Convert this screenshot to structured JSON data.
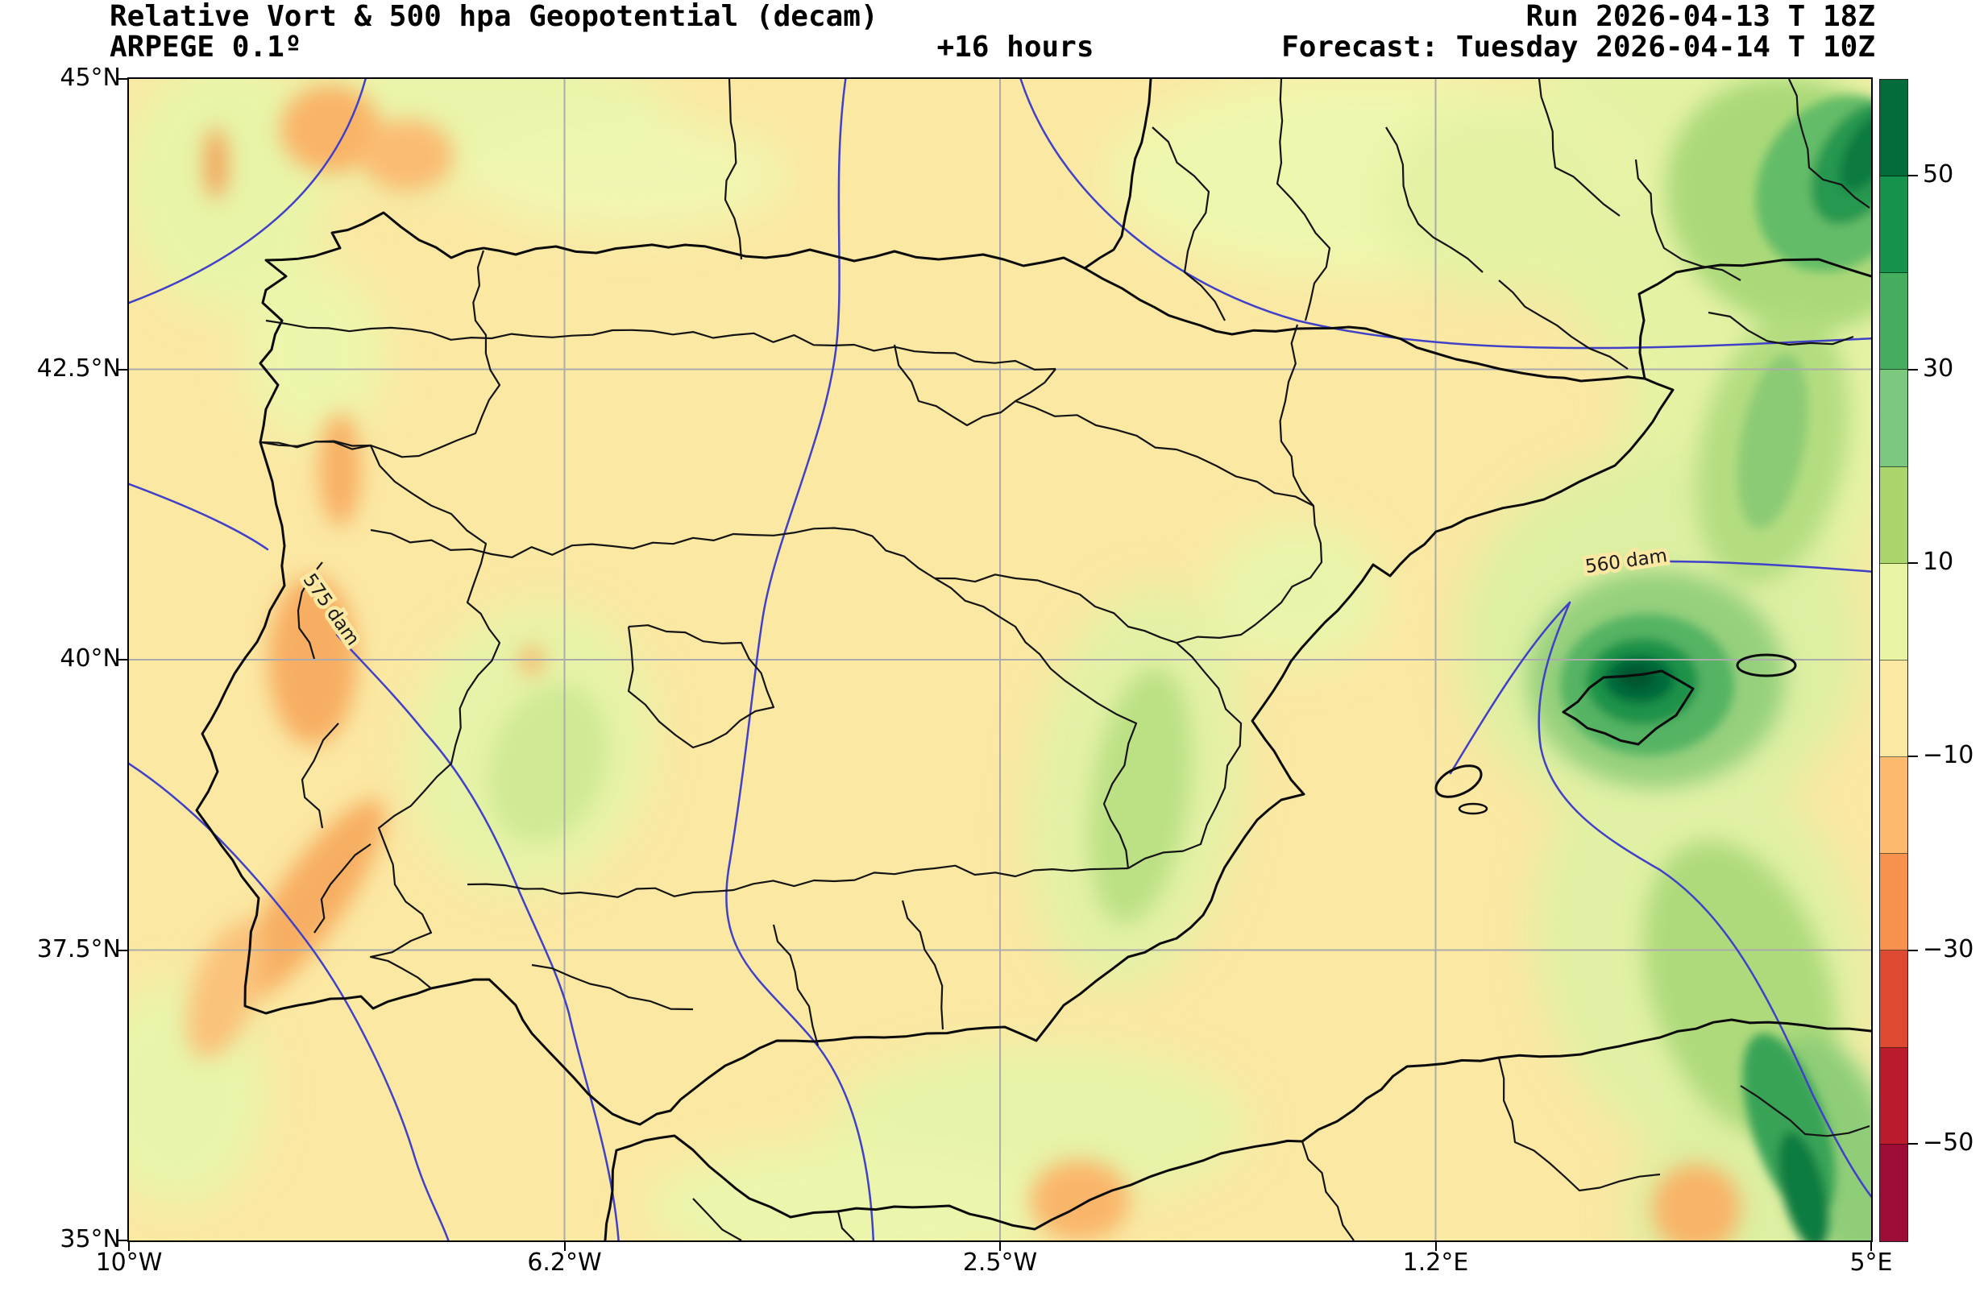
{
  "header": {
    "title_line1": "Relative Vort & 500 hpa Geopotential (decam)",
    "title_line2": "ARPEGE 0.1º",
    "lead_time": "+16 hours",
    "run_label": "Run 2026-04-13 T 18Z",
    "forecast_label": "Forecast: Tuesday 2026-04-14 T 10Z"
  },
  "chart_data": {
    "type": "heatmap",
    "title": "Relative Vort & 500 hpa Geopotential (decam)",
    "model": "ARPEGE 0.1º",
    "lead_time_hours": 16,
    "run": "2026-04-13 18Z",
    "valid": "Tuesday 2026-04-14 10Z",
    "field": "relative vorticity (shaded) and 500 hPa geopotential height contours (dam)",
    "x_axis": {
      "tick_labels": [
        "10°W",
        "6.2°W",
        "2.5°W",
        "1.2°E",
        "5°E"
      ],
      "range_deg_lon": [
        -10,
        5
      ]
    },
    "y_axis": {
      "tick_labels": [
        "45°N",
        "42.5°N",
        "40°N",
        "37.5°N",
        "35°N"
      ],
      "range_deg_lat": [
        35,
        45
      ]
    },
    "grid": true,
    "grid_lons": [
      -6.25,
      -2.5,
      1.25
    ],
    "grid_lats": [
      42.5,
      40,
      37.5
    ],
    "colorbar": {
      "tick_labels": [
        "50",
        "30",
        "10",
        "−10",
        "−30",
        "−50"
      ],
      "levels_top_to_bottom": [
        60,
        50,
        40,
        30,
        20,
        10,
        0,
        -10,
        -20,
        -30,
        -40,
        -50,
        -60
      ],
      "colors_top_to_bottom": [
        "#046b3a",
        "#15924b",
        "#44ad5f",
        "#7cc87e",
        "#a9d56b",
        "#e9f5a3",
        "#fbe8a3",
        "#fdba6e",
        "#f9914e",
        "#dc4a31",
        "#bc1b2e",
        "#9c0c36"
      ]
    },
    "contour_labels": [
      {
        "text": "575 dam",
        "approx_lon": -8.3,
        "approx_lat": 40.4,
        "rotation_deg": 55
      },
      {
        "text": "560 dam",
        "approx_lon": 2.9,
        "approx_lat": 40.8,
        "rotation_deg": -8
      }
    ],
    "annotations": [
      {
        "feature": "strong positive vorticity maximum (dark green core > 50)",
        "approx_lon": 3.0,
        "approx_lat": 39.8,
        "location": "over Mallorca / Balearic Islands"
      },
      {
        "feature": "positive vorticity band (green)",
        "location": "diagonal band from NE corner (SE France) through the Balearics to NE Algeria"
      },
      {
        "feature": "negative vorticity patches (orange)",
        "location": "NW Atlantic corner, Galician coast, western Portugal coast, SW Iberia, Alboran/Algerian coast"
      }
    ]
  }
}
